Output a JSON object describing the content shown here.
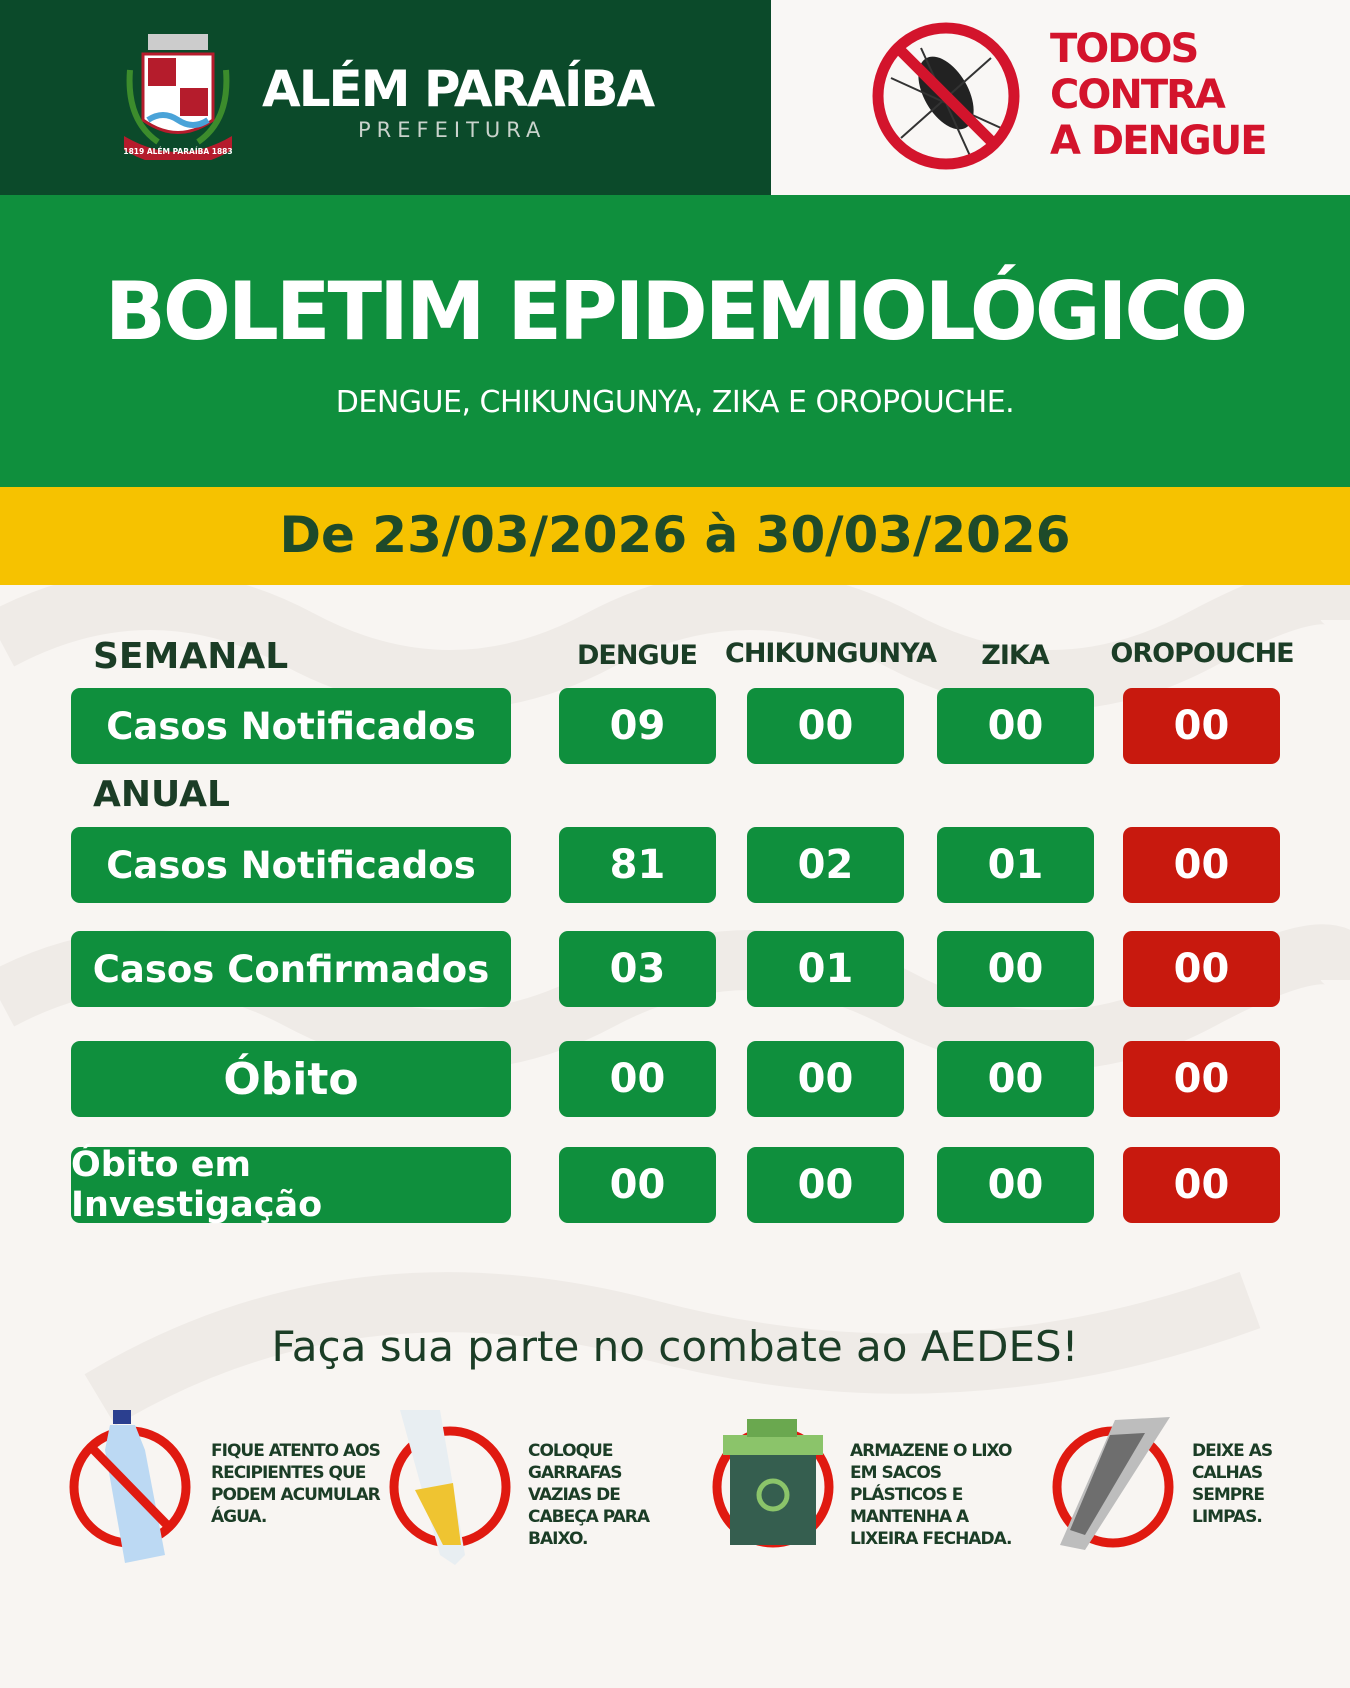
{
  "header": {
    "city": "ALÉM PARAÍBA",
    "city_sub": "PREFEITURA",
    "crest_text": "1819 ALÉM PARAÍBA 1883",
    "campaign": [
      "TODOS",
      "CONTRA",
      "A DENGUE"
    ]
  },
  "banner": {
    "title": "BOLETIM EPIDEMIOLÓGICO",
    "subtitle": "DENGUE, CHIKUNGUNYA, ZIKA E OROPOUCHE."
  },
  "period": "De 23/03/2026 à 30/03/2026",
  "table": {
    "columns": [
      "DENGUE",
      "CHIKUNGUNYA",
      "ZIKA",
      "OROPOUCHE"
    ],
    "sections": {
      "weekly": "SEMANAL",
      "annual": "ANUAL"
    },
    "rows": [
      {
        "label": "Casos Notificados",
        "values": [
          "09",
          "00",
          "00",
          "00"
        ]
      },
      {
        "label": "Casos Notificados",
        "values": [
          "81",
          "02",
          "01",
          "00"
        ]
      },
      {
        "label": "Casos Confirmados",
        "values": [
          "03",
          "01",
          "00",
          "00"
        ]
      },
      {
        "label": "Óbito",
        "values": [
          "00",
          "00",
          "00",
          "00"
        ]
      },
      {
        "label": "Óbito em Investigação",
        "values": [
          "00",
          "00",
          "00",
          "00"
        ]
      }
    ]
  },
  "colors": {
    "dark_green": "#0b4a2a",
    "green": "#0f8f3d",
    "yellow": "#f6c200",
    "red": "#c8190e"
  },
  "footer": {
    "slogan": "Faça sua parte no combate ao AEDES!",
    "tips": [
      {
        "icon": "plastic-bottle-icon",
        "text": "FIQUE ATENTO AOS RECIPIENTES QUE PODEM ACUMULAR ÁGUA."
      },
      {
        "icon": "upside-down-bottle-icon",
        "text": "COLOQUE GARRAFAS VAZIAS DE CABEÇA PARA BAIXO."
      },
      {
        "icon": "trash-bin-icon",
        "text": "ARMAZENE O LIXO EM SACOS PLÁSTICOS E MANTENHA A LIXEIRA FECHADA."
      },
      {
        "icon": "gutter-icon",
        "text": "DEIXE AS CALHAS SEMPRE LIMPAS."
      }
    ]
  }
}
